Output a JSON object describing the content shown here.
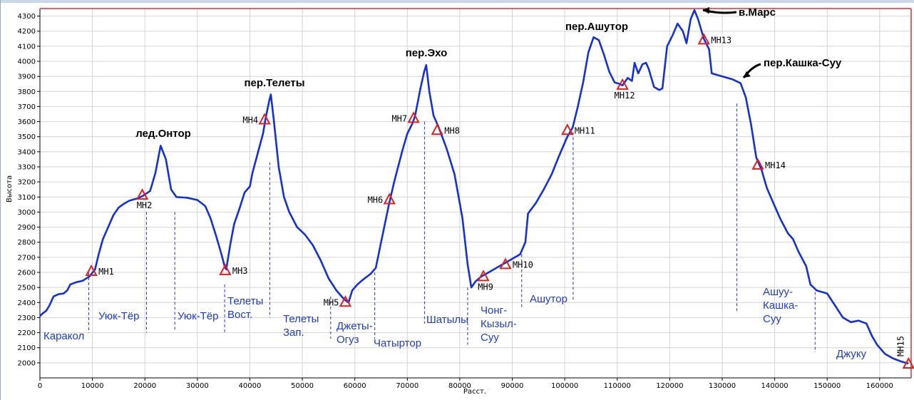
{
  "chart_data": {
    "type": "line",
    "title": "",
    "xlabel": "Расст.",
    "ylabel": "Высота",
    "xlim": [
      0,
      166000
    ],
    "ylim": [
      1900,
      4350
    ],
    "x_ticks": [
      0,
      10000,
      20000,
      30000,
      40000,
      50000,
      60000,
      70000,
      80000,
      90000,
      100000,
      110000,
      120000,
      130000,
      140000,
      150000,
      160000
    ],
    "y_ticks": [
      2000,
      2100,
      2200,
      2300,
      2400,
      2500,
      2600,
      2700,
      2800,
      2900,
      3000,
      3100,
      3200,
      3300,
      3400,
      3500,
      3600,
      3700,
      3800,
      3900,
      4000,
      4100,
      4200,
      4300
    ],
    "grid": true,
    "line_color": "#1430d8",
    "grid_color": "#d4d4d4",
    "frame_top_color": "#e03030",
    "marker_color": "#e02020",
    "label_color": "#1f3bd6",
    "profile": [
      [
        0,
        2310
      ],
      [
        600,
        2330
      ],
      [
        1200,
        2345
      ],
      [
        1800,
        2380
      ],
      [
        2600,
        2440
      ],
      [
        3500,
        2455
      ],
      [
        4500,
        2460
      ],
      [
        5200,
        2480
      ],
      [
        5800,
        2520
      ],
      [
        7000,
        2535
      ],
      [
        8200,
        2545
      ],
      [
        9500,
        2575
      ],
      [
        10500,
        2620
      ],
      [
        11200,
        2720
      ],
      [
        12000,
        2820
      ],
      [
        13000,
        2900
      ],
      [
        14000,
        2980
      ],
      [
        15000,
        3030
      ],
      [
        16000,
        3055
      ],
      [
        17000,
        3075
      ],
      [
        18500,
        3090
      ],
      [
        19500,
        3105
      ],
      [
        21000,
        3140
      ],
      [
        22000,
        3260
      ],
      [
        23000,
        3440
      ],
      [
        24000,
        3350
      ],
      [
        25000,
        3150
      ],
      [
        26000,
        3100
      ],
      [
        28000,
        3095
      ],
      [
        30000,
        3080
      ],
      [
        31500,
        3040
      ],
      [
        32500,
        2960
      ],
      [
        33500,
        2850
      ],
      [
        34500,
        2730
      ],
      [
        35200,
        2640
      ],
      [
        35500,
        2620
      ],
      [
        36300,
        2790
      ],
      [
        37000,
        2920
      ],
      [
        38000,
        3020
      ],
      [
        39000,
        3130
      ],
      [
        40000,
        3170
      ],
      [
        40500,
        3260
      ],
      [
        41500,
        3390
      ],
      [
        42500,
        3520
      ],
      [
        43000,
        3620
      ],
      [
        43700,
        3740
      ],
      [
        44000,
        3780
      ],
      [
        44600,
        3600
      ],
      [
        45500,
        3300
      ],
      [
        46500,
        3100
      ],
      [
        47500,
        3000
      ],
      [
        49000,
        2900
      ],
      [
        50500,
        2850
      ],
      [
        52000,
        2780
      ],
      [
        53500,
        2680
      ],
      [
        55000,
        2560
      ],
      [
        56500,
        2480
      ],
      [
        58000,
        2420
      ],
      [
        58800,
        2400
      ],
      [
        59500,
        2480
      ],
      [
        60500,
        2520
      ],
      [
        61500,
        2550
      ],
      [
        63000,
        2590
      ],
      [
        64000,
        2630
      ],
      [
        65000,
        2800
      ],
      [
        66500,
        3050
      ],
      [
        67500,
        3200
      ],
      [
        69000,
        3400
      ],
      [
        70000,
        3520
      ],
      [
        71000,
        3590
      ],
      [
        71500,
        3640
      ],
      [
        72500,
        3820
      ],
      [
        73200,
        3930
      ],
      [
        73600,
        3975
      ],
      [
        74200,
        3800
      ],
      [
        75000,
        3640
      ],
      [
        76000,
        3560
      ],
      [
        77500,
        3420
      ],
      [
        79000,
        3250
      ],
      [
        80500,
        2960
      ],
      [
        81500,
        2650
      ],
      [
        82200,
        2500
      ],
      [
        83000,
        2540
      ],
      [
        84000,
        2570
      ],
      [
        85000,
        2590
      ],
      [
        86500,
        2620
      ],
      [
        88000,
        2650
      ],
      [
        89000,
        2670
      ],
      [
        90000,
        2690
      ],
      [
        91500,
        2720
      ],
      [
        92500,
        2800
      ],
      [
        93000,
        2990
      ],
      [
        94500,
        3060
      ],
      [
        96000,
        3150
      ],
      [
        97500,
        3250
      ],
      [
        99000,
        3380
      ],
      [
        100500,
        3500
      ],
      [
        101500,
        3560
      ],
      [
        102500,
        3700
      ],
      [
        103500,
        3860
      ],
      [
        104500,
        4060
      ],
      [
        105500,
        4160
      ],
      [
        106500,
        4140
      ],
      [
        107500,
        4040
      ],
      [
        108500,
        3930
      ],
      [
        109500,
        3860
      ],
      [
        110500,
        3850
      ],
      [
        111000,
        3840
      ],
      [
        112000,
        3890
      ],
      [
        112800,
        3870
      ],
      [
        113300,
        3990
      ],
      [
        114000,
        3920
      ],
      [
        114800,
        3980
      ],
      [
        115500,
        3990
      ],
      [
        116000,
        3950
      ],
      [
        117000,
        3830
      ],
      [
        118000,
        3810
      ],
      [
        118600,
        3820
      ],
      [
        119500,
        4100
      ],
      [
        120500,
        4170
      ],
      [
        121500,
        4250
      ],
      [
        122500,
        4200
      ],
      [
        123200,
        4120
      ],
      [
        124000,
        4280
      ],
      [
        124700,
        4340
      ],
      [
        125400,
        4280
      ],
      [
        126500,
        4150
      ],
      [
        127500,
        4080
      ],
      [
        128000,
        3920
      ],
      [
        130000,
        3900
      ],
      [
        132000,
        3880
      ],
      [
        133500,
        3855
      ],
      [
        134500,
        3760
      ],
      [
        135500,
        3580
      ],
      [
        136500,
        3360
      ],
      [
        137500,
        3280
      ],
      [
        138500,
        3160
      ],
      [
        139500,
        3080
      ],
      [
        141000,
        2960
      ],
      [
        142500,
        2860
      ],
      [
        143500,
        2820
      ],
      [
        144500,
        2740
      ],
      [
        146000,
        2640
      ],
      [
        146800,
        2520
      ],
      [
        148000,
        2480
      ],
      [
        150000,
        2460
      ],
      [
        151500,
        2380
      ],
      [
        153000,
        2300
      ],
      [
        154500,
        2270
      ],
      [
        156000,
        2280
      ],
      [
        157500,
        2260
      ],
      [
        158500,
        2180
      ],
      [
        159500,
        2120
      ],
      [
        161000,
        2060
      ],
      [
        162500,
        2030
      ],
      [
        164000,
        2010
      ],
      [
        165500,
        1995
      ]
    ],
    "waypoints": [
      {
        "name": "МН1",
        "x": 9800,
        "y": 2605,
        "label_side": "right"
      },
      {
        "name": "МН2",
        "x": 19500,
        "y": 3110,
        "label_side": "below"
      },
      {
        "name": "МН3",
        "x": 35300,
        "y": 2610,
        "label_side": "right"
      },
      {
        "name": "МН4",
        "x": 42800,
        "y": 3610,
        "label_side": "left"
      },
      {
        "name": "МН5",
        "x": 58200,
        "y": 2400,
        "label_side": "left"
      },
      {
        "name": "МН6",
        "x": 66600,
        "y": 3080,
        "label_side": "left"
      },
      {
        "name": "МН7",
        "x": 71200,
        "y": 3620,
        "label_side": "left"
      },
      {
        "name": "МН8",
        "x": 75700,
        "y": 3540,
        "label_side": "right"
      },
      {
        "name": "МН9",
        "x": 84500,
        "y": 2570,
        "label_side": "below"
      },
      {
        "name": "МН10",
        "x": 88700,
        "y": 2650,
        "label_side": "right"
      },
      {
        "name": "МН11",
        "x": 100500,
        "y": 3540,
        "label_side": "right"
      },
      {
        "name": "МН12",
        "x": 111000,
        "y": 3840,
        "label_side": "below"
      },
      {
        "name": "МН13",
        "x": 126500,
        "y": 4140,
        "label_side": "right"
      },
      {
        "name": "МН14",
        "x": 136800,
        "y": 3310,
        "label_side": "right"
      },
      {
        "name": "МН15",
        "x": 165500,
        "y": 1990,
        "label_side": "above-vertical"
      }
    ],
    "peaks": [
      {
        "name": "лед.Онтор",
        "x": 23000,
        "y": 3440
      },
      {
        "name": "пер.Телеты",
        "x": 44000,
        "y": 3780
      },
      {
        "name": "пер.Эхо",
        "x": 73600,
        "y": 3975
      },
      {
        "name": "пер.Ашутор",
        "x": 105500,
        "y": 4160
      },
      {
        "name": "в.Марс",
        "x": 124700,
        "y": 4340
      },
      {
        "name": "пер.Кашка-Суу",
        "x": 133500,
        "y": 3855
      }
    ],
    "dividers": [
      {
        "x": 9300,
        "y0": 2200,
        "y1": 2600
      },
      {
        "x": 20300,
        "y0": 2200,
        "y1": 3000
      },
      {
        "x": 25700,
        "y0": 2220,
        "y1": 3000
      },
      {
        "x": 35200,
        "y0": 2200,
        "y1": 2520
      },
      {
        "x": 43800,
        "y0": 2300,
        "y1": 3330
      },
      {
        "x": 55400,
        "y0": 2160,
        "y1": 2440
      },
      {
        "x": 63800,
        "y0": 2160,
        "y1": 2600
      },
      {
        "x": 73300,
        "y0": 2260,
        "y1": 3600
      },
      {
        "x": 81500,
        "y0": 2120,
        "y1": 2500
      },
      {
        "x": 91800,
        "y0": 2360,
        "y1": 2720
      },
      {
        "x": 101600,
        "y0": 2420,
        "y1": 3530
      },
      {
        "x": 132800,
        "y0": 2340,
        "y1": 3720
      },
      {
        "x": 147700,
        "y0": 2070,
        "y1": 2470
      }
    ],
    "segments": [
      [
        "Каракол"
      ],
      [
        "Уюк-Тёр"
      ],
      [
        "Уюк-Тёр"
      ],
      [
        "Телеты",
        "Вост."
      ],
      [
        "Телеты",
        "Зап."
      ],
      [
        "Джеты-",
        "Огуз"
      ],
      [
        "Чатыртор"
      ],
      [
        "Шатылы"
      ],
      [
        "Чонг-",
        "Кызыл-",
        "Суу"
      ],
      [
        "Ашутор"
      ],
      [
        "Ашуу-",
        "Кашка-",
        "Суу"
      ],
      [
        "Джуку"
      ]
    ]
  }
}
